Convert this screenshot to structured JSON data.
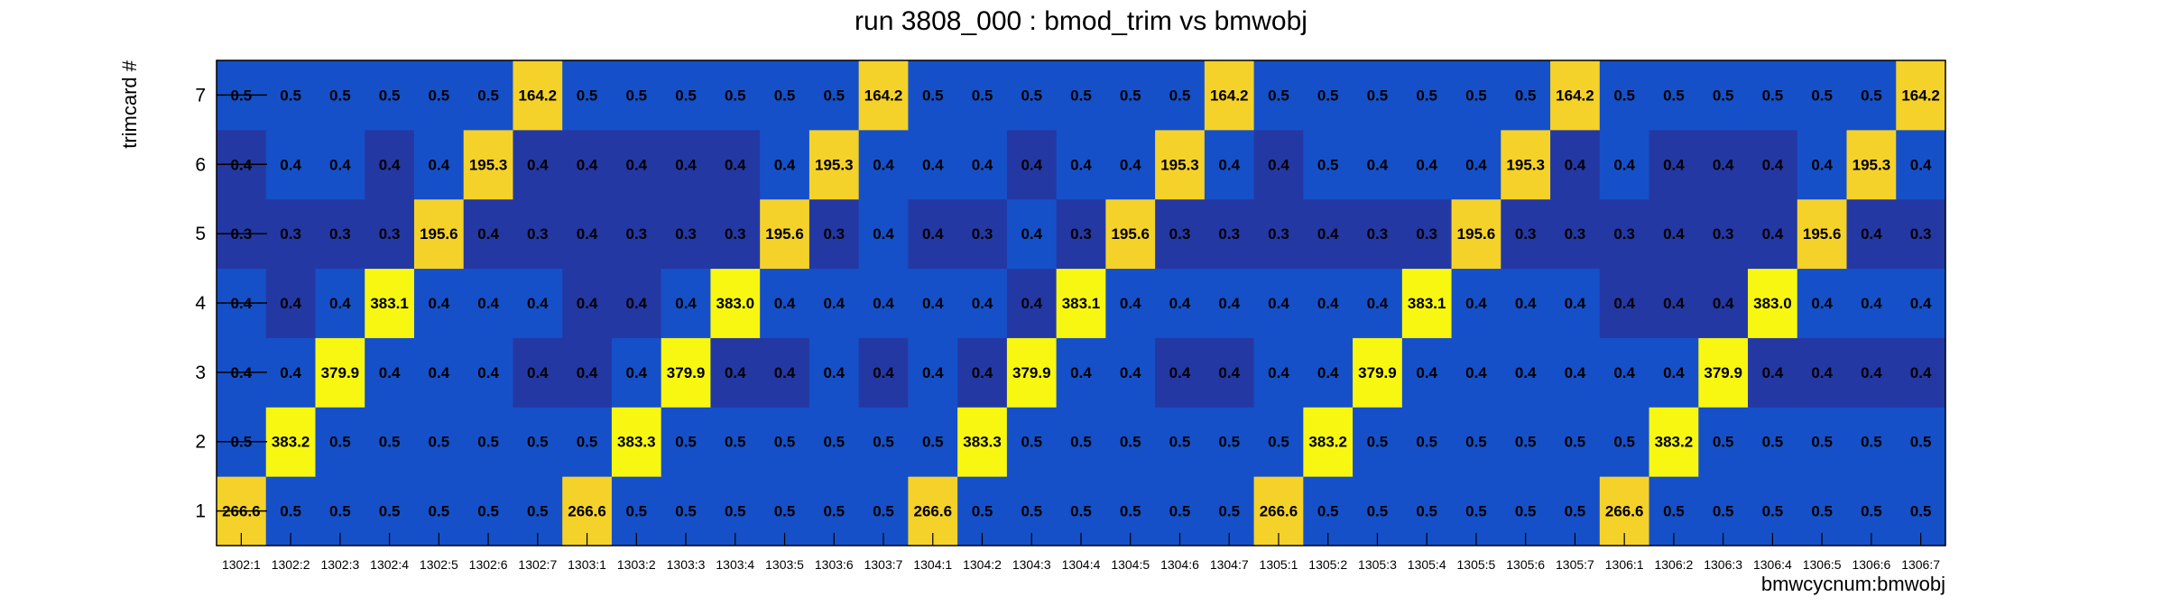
{
  "chart_data": {
    "type": "heatmap",
    "title": "run 3808_000 : bmod_trim vs bmwobj",
    "xlabel": "bmwcycnum:bmwobj",
    "ylabel": "trimcard #",
    "x_categories": [
      "1302:1",
      "1302:2",
      "1302:3",
      "1302:4",
      "1302:5",
      "1302:6",
      "1302:7",
      "1303:1",
      "1303:2",
      "1303:3",
      "1303:4",
      "1303:5",
      "1303:6",
      "1303:7",
      "1304:1",
      "1304:2",
      "1304:3",
      "1304:4",
      "1304:5",
      "1304:6",
      "1304:7",
      "1305:1",
      "1305:2",
      "1305:3",
      "1305:4",
      "1305:5",
      "1305:6",
      "1305:7",
      "1306:1",
      "1306:2",
      "1306:3",
      "1306:4",
      "1306:5",
      "1306:6",
      "1306:7"
    ],
    "y_categories": [
      "1",
      "2",
      "3",
      "4",
      "5",
      "6",
      "7"
    ],
    "values": [
      [
        266.6,
        0.5,
        0.5,
        0.5,
        0.5,
        0.5,
        0.5,
        266.6,
        0.5,
        0.5,
        0.5,
        0.5,
        0.5,
        0.5,
        266.6,
        0.5,
        0.5,
        0.5,
        0.5,
        0.5,
        0.5,
        266.6,
        0.5,
        0.5,
        0.5,
        0.5,
        0.5,
        0.5,
        266.6,
        0.5,
        0.5,
        0.5,
        0.5,
        0.5,
        0.5
      ],
      [
        0.5,
        383.2,
        0.5,
        0.5,
        0.5,
        0.5,
        0.5,
        0.5,
        383.3,
        0.5,
        0.5,
        0.5,
        0.5,
        0.5,
        0.5,
        383.3,
        0.5,
        0.5,
        0.5,
        0.5,
        0.5,
        0.5,
        383.2,
        0.5,
        0.5,
        0.5,
        0.5,
        0.5,
        0.5,
        383.2,
        0.5,
        0.5,
        0.5,
        0.5,
        0.5
      ],
      [
        0.4,
        0.4,
        379.9,
        0.4,
        0.4,
        0.4,
        0.4,
        0.4,
        0.4,
        379.9,
        0.4,
        0.4,
        0.4,
        0.4,
        0.4,
        0.4,
        379.9,
        0.4,
        0.4,
        0.4,
        0.4,
        0.4,
        0.4,
        379.9,
        0.4,
        0.4,
        0.4,
        0.4,
        0.4,
        0.4,
        379.9,
        0.4,
        0.4,
        0.4,
        0.4
      ],
      [
        0.4,
        0.4,
        0.4,
        383.1,
        0.4,
        0.4,
        0.4,
        0.4,
        0.4,
        0.4,
        383.0,
        0.4,
        0.4,
        0.4,
        0.4,
        0.4,
        0.4,
        383.1,
        0.4,
        0.4,
        0.4,
        0.4,
        0.4,
        0.4,
        383.1,
        0.4,
        0.4,
        0.4,
        0.4,
        0.4,
        0.4,
        383.0,
        0.4,
        0.4,
        0.4
      ],
      [
        0.3,
        0.3,
        0.3,
        0.3,
        195.6,
        0.4,
        0.3,
        0.4,
        0.3,
        0.3,
        0.3,
        195.6,
        0.3,
        0.4,
        0.4,
        0.3,
        0.4,
        0.3,
        195.6,
        0.3,
        0.3,
        0.3,
        0.4,
        0.3,
        0.3,
        195.6,
        0.3,
        0.3,
        0.3,
        0.4,
        0.3,
        0.4,
        195.6,
        0.4,
        0.3
      ],
      [
        0.4,
        0.4,
        0.4,
        0.4,
        0.4,
        195.3,
        0.4,
        0.4,
        0.4,
        0.4,
        0.4,
        0.4,
        195.3,
        0.4,
        0.4,
        0.4,
        0.4,
        0.4,
        0.4,
        195.3,
        0.4,
        0.4,
        0.5,
        0.4,
        0.4,
        0.4,
        195.3,
        0.4,
        0.4,
        0.4,
        0.4,
        0.4,
        0.4,
        195.3,
        0.4
      ],
      [
        0.5,
        0.5,
        0.5,
        0.5,
        0.5,
        0.5,
        164.2,
        0.5,
        0.5,
        0.5,
        0.5,
        0.5,
        0.5,
        164.2,
        0.5,
        0.5,
        0.5,
        0.5,
        0.5,
        0.5,
        164.2,
        0.5,
        0.5,
        0.5,
        0.5,
        0.5,
        0.5,
        164.2,
        0.5,
        0.5,
        0.5,
        0.5,
        0.5,
        0.5,
        164.2
      ]
    ],
    "dark_cells": [
      [],
      [],
      [
        6,
        7,
        10,
        11,
        13,
        15,
        19,
        20,
        31,
        32,
        33,
        34
      ],
      [
        1,
        7,
        8,
        16,
        24,
        28,
        29,
        30
      ],
      [
        0,
        1,
        2,
        3,
        5,
        6,
        7,
        8,
        9,
        10,
        12,
        14,
        15,
        17,
        19,
        20,
        21,
        22,
        23,
        24,
        26,
        27,
        28,
        29,
        30,
        31,
        33,
        34
      ],
      [
        0,
        3,
        6,
        7,
        8,
        9,
        10,
        16,
        21,
        27,
        29,
        30,
        31
      ],
      []
    ],
    "colors": {
      "background": "#ffffff",
      "frame": "#000000",
      "low": "#1650c8",
      "low_dark": "#2438a3",
      "mid_high": "#f5d22a",
      "high": "#f7f712"
    }
  }
}
